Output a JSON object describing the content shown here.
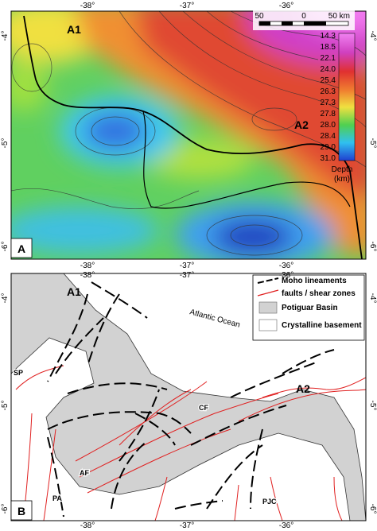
{
  "axes": {
    "lon": [
      "-38°",
      "-37°",
      "-36°"
    ],
    "lat": [
      "-4°",
      "-5°",
      "-6°"
    ]
  },
  "panel_a": {
    "label": "A",
    "anomalies": [
      "A1",
      "A2"
    ],
    "scale_bar": [
      "50",
      "0",
      "50 km"
    ],
    "colorbar": {
      "labels": [
        "14.3",
        "18.5",
        "22.1",
        "24.0",
        "25.4",
        "26.3",
        "27.3",
        "27.8",
        "28.0",
        "28.4",
        "29.0",
        "31.0"
      ],
      "title": [
        "Depth",
        "(km)"
      ]
    }
  },
  "panel_b": {
    "label": "B",
    "anomalies": [
      "A1",
      "A2"
    ],
    "ocean": "Atlantic Ocean",
    "structures": [
      "SP",
      "AF",
      "CF",
      "PA",
      "PJC"
    ],
    "legend": [
      "Moho lineaments",
      "faults / shear zones",
      "Potiguar Basin",
      "Crystalline basement"
    ]
  }
}
